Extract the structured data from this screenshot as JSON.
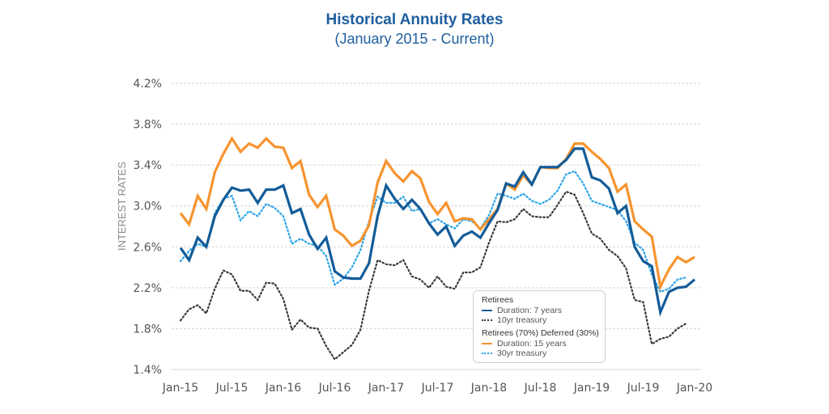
{
  "chart_data": {
    "type": "line",
    "title": "Historical Annuity Rates",
    "subtitle": "(January 2015 - Current)",
    "xlabel": "",
    "ylabel": "INTEREST RATES",
    "ylim": [
      1.4,
      4.2
    ],
    "y_ticks": [
      "1.4%",
      "1.8%",
      "2.2%",
      "2.6%",
      "3.0%",
      "3.4%",
      "3.8%",
      "4.2%"
    ],
    "y_tick_values": [
      1.4,
      1.8,
      2.2,
      2.6,
      3.0,
      3.4,
      3.8,
      4.2
    ],
    "x_ticks": [
      "Jan-15",
      "Jul-15",
      "Jan-16",
      "Jul-16",
      "Jan-17",
      "Jul-17",
      "Jan-18",
      "Jul-18",
      "Jan-19",
      "Jul-19",
      "Jan-20"
    ],
    "x_tick_month_index": [
      0,
      6,
      12,
      18,
      24,
      30,
      36,
      42,
      48,
      54,
      60
    ],
    "x_start": "Jan-15",
    "x_unit": "month",
    "grid": "horizontal-dashed",
    "legend_position": "bottom-right",
    "legend": {
      "groups": [
        {
          "title": "Retirees",
          "entries": [
            {
              "label": "Duration: 7 years",
              "series": "Duration: 7 years"
            },
            {
              "label": "10yr treasury",
              "series": "10yr treasury"
            }
          ]
        },
        {
          "title": "Retirees (70%) Deferred (30%)",
          "entries": [
            {
              "label": "Duration: 15 years",
              "series": "Duration: 15 years"
            },
            {
              "label": "30yr treasury",
              "series": "30yr treasury"
            }
          ]
        }
      ]
    },
    "series": [
      {
        "name": "10yr treasury",
        "color": "#3a3a3a",
        "style": "dotted",
        "values": [
          1.88,
          1.99,
          2.03,
          1.95,
          2.19,
          2.37,
          2.33,
          2.17,
          2.17,
          2.08,
          2.25,
          2.24,
          2.09,
          1.79,
          1.89,
          1.81,
          1.8,
          1.63,
          1.5,
          1.57,
          1.64,
          1.79,
          2.17,
          2.47,
          2.43,
          2.42,
          2.47,
          2.31,
          2.28,
          2.2,
          2.31,
          2.21,
          2.19,
          2.35,
          2.35,
          2.4,
          2.64,
          2.85,
          2.84,
          2.87,
          2.97,
          2.9,
          2.89,
          2.89,
          3.01,
          3.14,
          3.11,
          2.93,
          2.73,
          2.68,
          2.57,
          2.51,
          2.39,
          2.08,
          2.06,
          1.65,
          1.7,
          1.72,
          1.8,
          1.85
        ]
      },
      {
        "name": "30yr treasury",
        "color": "#2aa4e6",
        "style": "dotted",
        "values": [
          2.46,
          2.56,
          2.63,
          2.6,
          2.93,
          3.07,
          3.1,
          2.86,
          2.95,
          2.9,
          3.02,
          2.98,
          2.9,
          2.63,
          2.68,
          2.63,
          2.61,
          2.51,
          2.23,
          2.29,
          2.4,
          2.57,
          2.85,
          3.09,
          3.03,
          3.03,
          3.09,
          2.95,
          2.97,
          2.83,
          2.87,
          2.82,
          2.78,
          2.87,
          2.85,
          2.78,
          2.91,
          3.12,
          3.1,
          3.07,
          3.12,
          3.05,
          3.02,
          3.06,
          3.15,
          3.31,
          3.34,
          3.22,
          3.05,
          3.02,
          2.99,
          2.96,
          2.85,
          2.64,
          2.57,
          2.33,
          2.16,
          2.19,
          2.28,
          2.3
        ]
      },
      {
        "name": "Duration: 15 years",
        "color": "#f7942f",
        "style": "solid",
        "values": [
          2.93,
          2.82,
          3.1,
          2.97,
          3.33,
          3.51,
          3.66,
          3.53,
          3.61,
          3.57,
          3.66,
          3.58,
          3.57,
          3.37,
          3.44,
          3.11,
          2.99,
          3.1,
          2.77,
          2.71,
          2.61,
          2.66,
          2.81,
          3.23,
          3.44,
          3.32,
          3.24,
          3.34,
          3.27,
          3.04,
          2.92,
          3.03,
          2.85,
          2.88,
          2.87,
          2.77,
          2.87,
          2.97,
          3.22,
          3.16,
          3.3,
          3.21,
          3.38,
          3.37,
          3.37,
          3.46,
          3.61,
          3.61,
          3.53,
          3.46,
          3.37,
          3.14,
          3.21,
          2.85,
          2.77,
          2.7,
          2.21,
          2.38,
          2.5,
          2.45,
          2.5
        ]
      },
      {
        "name": "Duration: 7 years",
        "color": "#135c99",
        "style": "solid",
        "values": [
          2.59,
          2.47,
          2.69,
          2.6,
          2.9,
          3.06,
          3.18,
          3.15,
          3.16,
          3.03,
          3.16,
          3.16,
          3.2,
          2.93,
          2.97,
          2.72,
          2.58,
          2.69,
          2.36,
          2.3,
          2.29,
          2.29,
          2.44,
          2.9,
          3.2,
          3.07,
          2.97,
          3.06,
          2.97,
          2.83,
          2.72,
          2.8,
          2.61,
          2.71,
          2.75,
          2.69,
          2.83,
          2.96,
          3.22,
          3.19,
          3.33,
          3.21,
          3.38,
          3.38,
          3.38,
          3.45,
          3.56,
          3.56,
          3.28,
          3.25,
          3.17,
          2.93,
          3.0,
          2.6,
          2.46,
          2.41,
          1.96,
          2.16,
          2.2,
          2.21,
          2.28
        ]
      }
    ]
  },
  "colors": {
    "title": "#1f5fa0",
    "gridline": "#d4d4d4",
    "axis_title": "#8a8a8a",
    "tick_label": "#555555"
  }
}
